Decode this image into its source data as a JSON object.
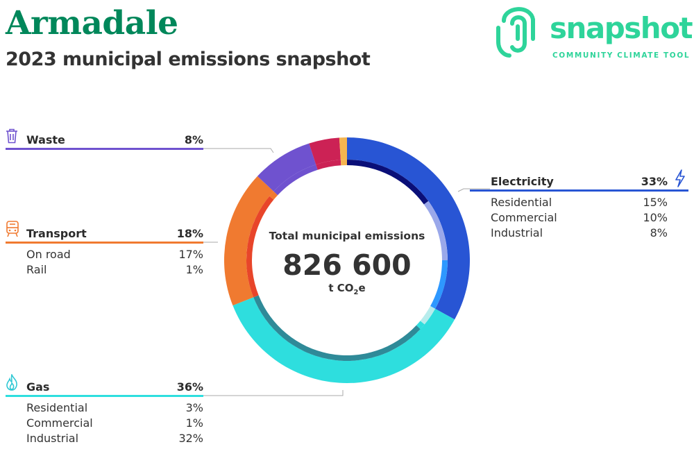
{
  "header": {
    "title": "Armadale",
    "subtitle": "2023 municipal emissions snapshot"
  },
  "logo": {
    "wordmark": "snapshot",
    "tagline": "COMMUNITY CLIMATE TOOL",
    "color": "#2ed49a"
  },
  "center": {
    "label": "Total municipal emissions",
    "value": "826 600",
    "unit_prefix": "t CO",
    "unit_sub": "2",
    "unit_suffix": "e"
  },
  "legend": {
    "waste": {
      "name": "Waste",
      "pct": "8%",
      "icon": "trash-icon"
    },
    "transport": {
      "name": "Transport",
      "pct": "18%",
      "icon": "train-icon",
      "rows": [
        {
          "label": "On road",
          "value": "17%"
        },
        {
          "label": "Rail",
          "value": "1%"
        }
      ]
    },
    "gas": {
      "name": "Gas",
      "pct": "36%",
      "icon": "flame-icon",
      "rows": [
        {
          "label": "Residential",
          "value": "3%"
        },
        {
          "label": "Commercial",
          "value": "1%"
        },
        {
          "label": "Industrial",
          "value": "32%"
        }
      ]
    },
    "electricity": {
      "name": "Electricity",
      "pct": "33%",
      "icon": "lightning-icon",
      "rows": [
        {
          "label": "Residential",
          "value": "15%"
        },
        {
          "label": "Commercial",
          "value": "10%"
        },
        {
          "label": "Industrial",
          "value": "8%"
        }
      ]
    }
  },
  "chart_data": {
    "type": "pie",
    "total": 826600,
    "unit": "t CO2e",
    "series": [
      {
        "name": "Electricity",
        "value": 33,
        "color": "#2855d4",
        "sub": [
          {
            "name": "Residential",
            "value": 15,
            "color": "#0a0f78"
          },
          {
            "name": "Commercial",
            "value": 10,
            "color": "#9aa8ea"
          },
          {
            "name": "Industrial",
            "value": 8,
            "color": "#2e98ff"
          }
        ]
      },
      {
        "name": "Gas",
        "value": 36,
        "color": "#2edede",
        "sub": [
          {
            "name": "Residential",
            "value": 3,
            "color": "#b8ecec"
          },
          {
            "name": "Commercial",
            "value": 1,
            "color": "#2edede"
          },
          {
            "name": "Industrial",
            "value": 32,
            "color": "#2f8a98"
          }
        ]
      },
      {
        "name": "Transport",
        "value": 18,
        "color": "#f07a30",
        "sub": [
          {
            "name": "On road",
            "value": 17,
            "color": "#e8452a"
          },
          {
            "name": "Rail",
            "value": 1,
            "color": "#f07a30"
          }
        ]
      },
      {
        "name": "Waste",
        "value": 8,
        "color": "#6f52cf"
      },
      {
        "name": "",
        "value": 4,
        "color": "#cc2255"
      },
      {
        "name": "",
        "value": 1,
        "color": "#f5b550"
      }
    ]
  }
}
